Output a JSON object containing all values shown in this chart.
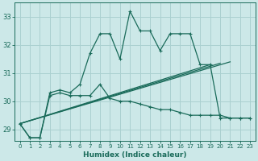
{
  "xlabel": "Humidex (Indice chaleur)",
  "bg_color": "#cce8e8",
  "grid_color": "#aad0d0",
  "line_color": "#1a6b5a",
  "xlim": [
    -0.5,
    23.5
  ],
  "ylim": [
    28.6,
    33.5
  ],
  "yticks": [
    29,
    30,
    31,
    32,
    33
  ],
  "xticks": [
    0,
    1,
    2,
    3,
    4,
    5,
    6,
    7,
    8,
    9,
    10,
    11,
    12,
    13,
    14,
    15,
    16,
    17,
    18,
    19,
    20,
    21,
    22,
    23
  ],
  "line1_x": [
    0,
    1,
    2,
    3,
    4,
    5,
    6,
    7,
    8,
    9,
    10,
    11,
    12,
    13,
    14,
    15,
    16,
    17,
    18,
    19,
    20,
    21,
    22,
    23
  ],
  "line1_y": [
    29.2,
    28.7,
    28.7,
    30.3,
    30.4,
    30.3,
    30.6,
    31.7,
    32.4,
    32.4,
    31.5,
    33.2,
    32.5,
    32.5,
    31.8,
    32.4,
    32.4,
    32.4,
    31.3,
    31.3,
    29.4,
    29.4,
    29.4,
    29.4
  ],
  "line2_x": [
    0,
    1,
    2,
    3,
    4,
    5,
    6,
    7,
    8,
    9,
    10,
    11,
    12,
    13,
    14,
    15,
    16,
    17,
    18,
    19,
    20,
    21,
    22,
    23
  ],
  "line2_y": [
    29.2,
    28.7,
    28.7,
    30.2,
    30.3,
    30.2,
    30.2,
    30.2,
    30.6,
    30.1,
    30.0,
    30.0,
    29.9,
    29.8,
    29.7,
    29.7,
    29.6,
    29.5,
    29.5,
    29.5,
    29.5,
    29.4,
    29.4,
    29.4
  ],
  "line3_x": [
    0,
    19
  ],
  "line3_y": [
    29.2,
    31.3
  ],
  "line4_x": [
    0,
    20
  ],
  "line4_y": [
    29.2,
    31.35
  ],
  "line5_x": [
    0,
    21
  ],
  "line5_y": [
    29.2,
    31.4
  ]
}
